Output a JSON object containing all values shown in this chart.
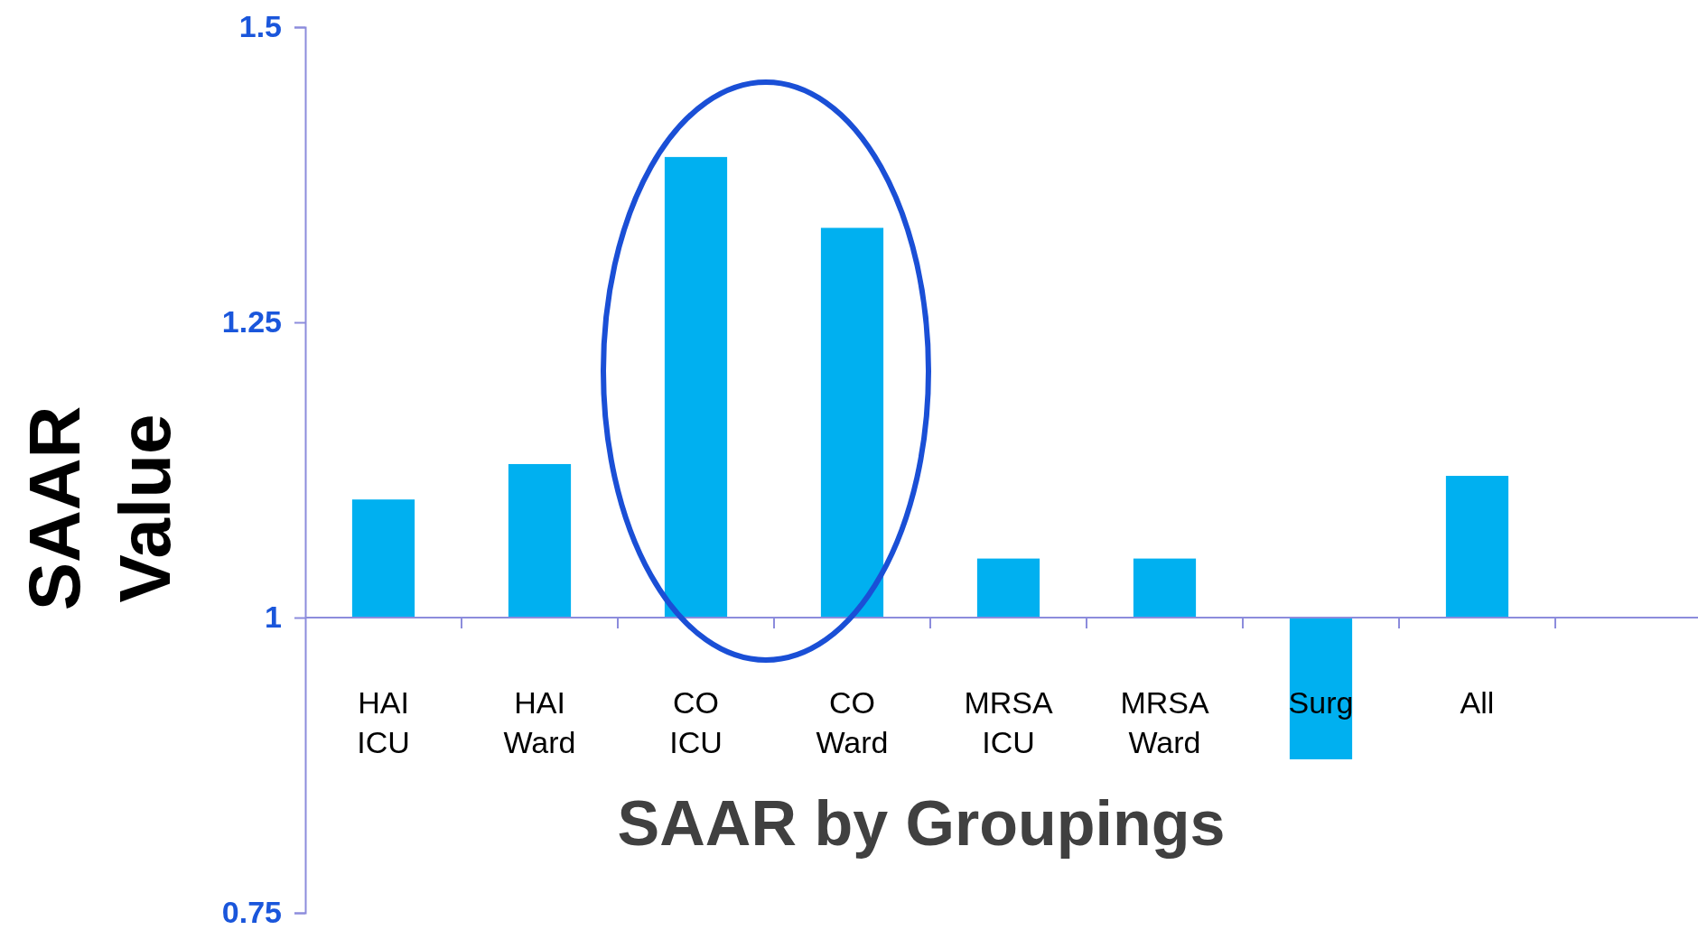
{
  "chart_data": {
    "type": "bar",
    "xlabel": "SAAR by Groupings",
    "ylabel": "SAAR Value",
    "categories": [
      "HAI ICU",
      "HAI Ward",
      "CO ICU",
      "CO Ward",
      "MRSA ICU",
      "MRSA Ward",
      "Surg",
      "All"
    ],
    "base": [
      1,
      1,
      1,
      1,
      1,
      1,
      1,
      1
    ],
    "values": [
      0.1,
      0.13,
      0.39,
      0.33,
      0.05,
      0.05,
      -0.12,
      0.12
    ],
    "color": "#00b0f0",
    "ylim": [
      0.75,
      1.5
    ],
    "yticks": [
      0.75,
      1,
      1.25,
      1.5
    ]
  }
}
